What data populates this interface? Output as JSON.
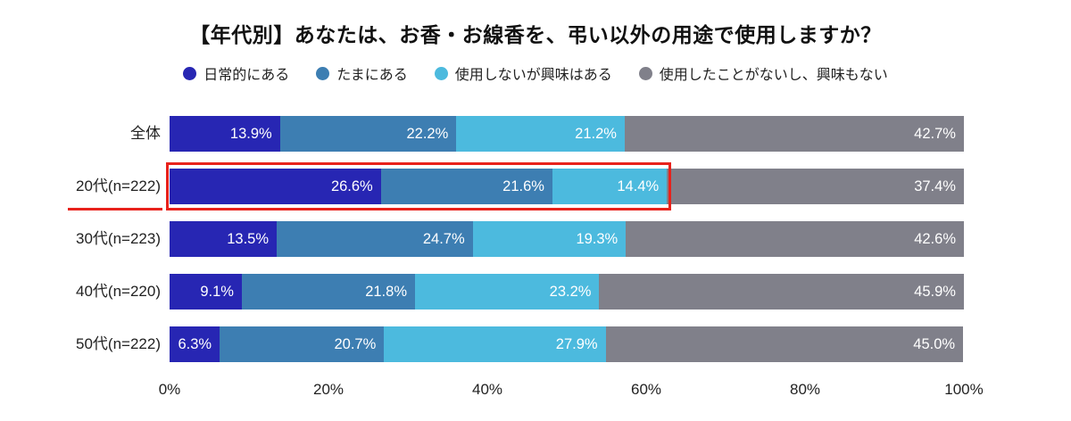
{
  "title": "【年代別】あなたは、お香・お線香を、弔い以外の用途で使用しますか？",
  "chart_data": {
    "type": "bar",
    "subtype": "horizontal-100pct-stacked",
    "title": "【年代別】あなたは、お香・お線香を、弔い以外の用途で使用しますか？",
    "categories": [
      "全体",
      "20代(n=222)",
      "30代(n=223)",
      "40代(n=220)",
      "50代(n=222)"
    ],
    "series": [
      {
        "name": "日常的にある",
        "color": "#2726b3",
        "values": [
          13.9,
          26.6,
          13.5,
          9.1,
          6.3
        ]
      },
      {
        "name": "たまにある",
        "color": "#3d7eb2",
        "values": [
          22.2,
          21.6,
          24.7,
          21.8,
          20.7
        ]
      },
      {
        "name": "使用しないが興味はある",
        "color": "#4cbade",
        "values": [
          21.2,
          14.4,
          19.3,
          23.2,
          27.9
        ]
      },
      {
        "name": "使用したことがないし、興味もない",
        "color": "#80808a",
        "values": [
          42.7,
          37.4,
          42.6,
          45.9,
          45.0
        ]
      }
    ],
    "value_suffix": "%",
    "x_ticks": [
      "0%",
      "20%",
      "40%",
      "60%",
      "80%",
      "100%"
    ],
    "xlim": [
      0,
      100
    ],
    "grid": false,
    "legend_position": "top",
    "highlight": {
      "category_index": 1,
      "segment_count": 3,
      "color": "#e8221c"
    }
  }
}
